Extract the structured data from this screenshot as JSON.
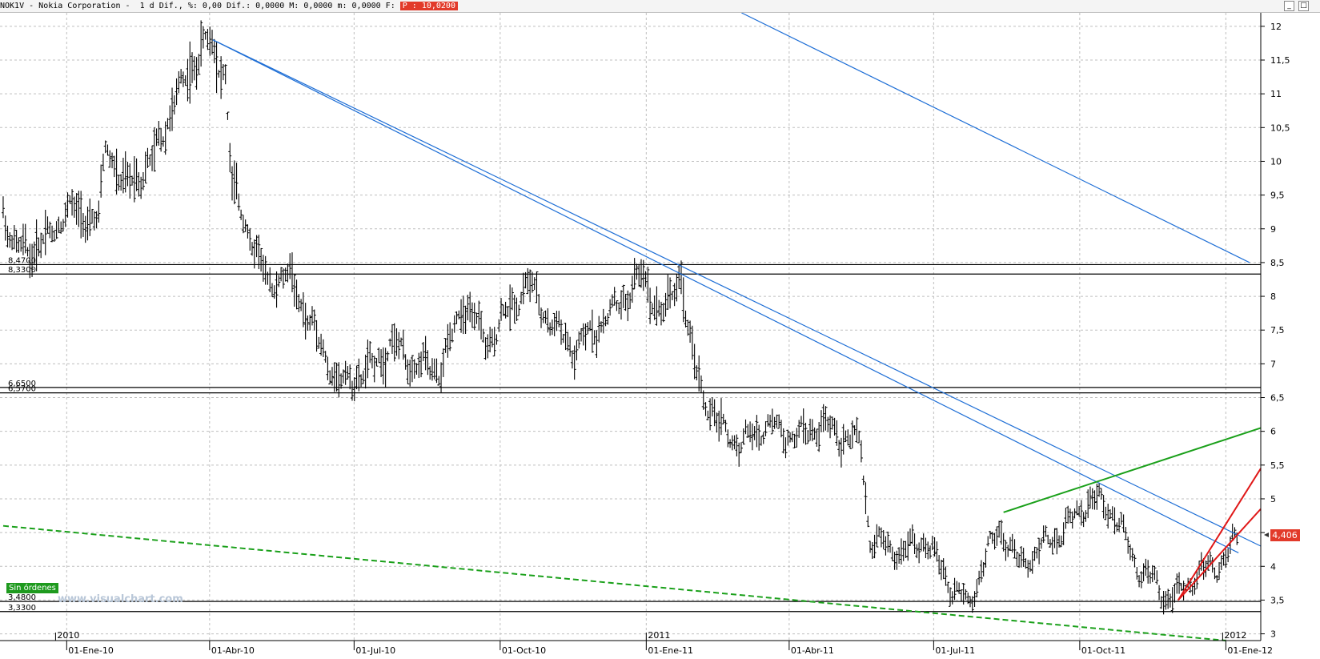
{
  "header": {
    "symbol": "NOK1V",
    "name": "Nokia Corporation",
    "info": "1 d Dif., %: 0,00 Dif.: 0,0000 M: 0,0000 m: 0,0000 F:",
    "price_tag": "P : 10,0200"
  },
  "window_buttons": [
    "_",
    "□"
  ],
  "badge": "Sin órdenes",
  "watermark": "www.visualchart.com",
  "last_price_label": "4,406",
  "colors": {
    "price": "#000000",
    "trend_blue": "#1f6fd6",
    "trend_green": "#1aa01a",
    "trend_red": "#e01818",
    "support_line": "#000000",
    "price_tag": "#e23a2a"
  },
  "chart_data": {
    "type": "ohlc-bar",
    "ylim": [
      2.9,
      12.2
    ],
    "y_ticks": [
      "3",
      "3,5",
      "4",
      "4,5",
      "5",
      "5,5",
      "6",
      "6,5",
      "7",
      "7,5",
      "8",
      "8,5",
      "9",
      "9,5",
      "10",
      "10,5",
      "11",
      "11,5",
      "12"
    ],
    "x_ticks": [
      {
        "label": "01-Ene-10",
        "day": 0
      },
      {
        "label": "01-Abr-10",
        "day": 90
      },
      {
        "label": "01-Jul-10",
        "day": 181
      },
      {
        "label": "01-Oct-10",
        "day": 273
      },
      {
        "label": "01-Ene-11",
        "day": 365
      },
      {
        "label": "01-Abr-11",
        "day": 455
      },
      {
        "label": "01-Jul-11",
        "day": 546
      },
      {
        "label": "01-Oct-11",
        "day": 638
      },
      {
        "label": "01-Ene-12",
        "day": 730
      }
    ],
    "year_labels": [
      {
        "label": "2010",
        "day": -7
      },
      {
        "label": "2011",
        "day": 365
      },
      {
        "label": "2012",
        "day": 728
      }
    ],
    "price_series_anchor_points": [
      {
        "day": -40,
        "close": 9.3
      },
      {
        "day": -33,
        "close": 8.7
      },
      {
        "day": -22,
        "close": 8.7
      },
      {
        "day": -10,
        "close": 8.9
      },
      {
        "day": 0,
        "close": 9.3
      },
      {
        "day": 20,
        "close": 9.1
      },
      {
        "day": 25,
        "close": 10.3
      },
      {
        "day": 36,
        "close": 9.6
      },
      {
        "day": 54,
        "close": 10.0
      },
      {
        "day": 68,
        "close": 10.9
      },
      {
        "day": 88,
        "close": 11.8
      },
      {
        "day": 100,
        "close": 11.3
      },
      {
        "day": 104,
        "close": 9.6
      },
      {
        "day": 116,
        "close": 8.9
      },
      {
        "day": 126,
        "close": 8.2
      },
      {
        "day": 140,
        "close": 8.3
      },
      {
        "day": 150,
        "close": 7.8
      },
      {
        "day": 163,
        "close": 7.1
      },
      {
        "day": 172,
        "close": 6.7
      },
      {
        "day": 190,
        "close": 6.9
      },
      {
        "day": 205,
        "close": 7.3
      },
      {
        "day": 218,
        "close": 7.0
      },
      {
        "day": 235,
        "close": 6.9
      },
      {
        "day": 250,
        "close": 7.9
      },
      {
        "day": 265,
        "close": 7.3
      },
      {
        "day": 290,
        "close": 8.2
      },
      {
        "day": 305,
        "close": 7.6
      },
      {
        "day": 320,
        "close": 7.2
      },
      {
        "day": 345,
        "close": 7.8
      },
      {
        "day": 362,
        "close": 8.3
      },
      {
        "day": 376,
        "close": 7.7
      },
      {
        "day": 387,
        "close": 8.4
      },
      {
        "day": 392,
        "close": 7.3
      },
      {
        "day": 400,
        "close": 6.6
      },
      {
        "day": 410,
        "close": 6.1
      },
      {
        "day": 425,
        "close": 5.8
      },
      {
        "day": 440,
        "close": 6.1
      },
      {
        "day": 460,
        "close": 5.9
      },
      {
        "day": 475,
        "close": 6.1
      },
      {
        "day": 500,
        "close": 5.8
      },
      {
        "day": 506,
        "close": 4.4
      },
      {
        "day": 525,
        "close": 4.2
      },
      {
        "day": 540,
        "close": 4.4
      },
      {
        "day": 555,
        "close": 3.8
      },
      {
        "day": 568,
        "close": 3.4
      },
      {
        "day": 580,
        "close": 4.2
      },
      {
        "day": 588,
        "close": 4.6
      },
      {
        "day": 600,
        "close": 4.0
      },
      {
        "day": 615,
        "close": 4.3
      },
      {
        "day": 630,
        "close": 4.6
      },
      {
        "day": 645,
        "close": 5.0
      },
      {
        "day": 660,
        "close": 4.8
      },
      {
        "day": 672,
        "close": 4.1
      },
      {
        "day": 690,
        "close": 3.6
      },
      {
        "day": 700,
        "close": 3.55
      },
      {
        "day": 712,
        "close": 3.9
      },
      {
        "day": 725,
        "close": 4.0
      },
      {
        "day": 738,
        "close": 4.406
      }
    ],
    "horizontal_levels": [
      {
        "value": 8.47,
        "label": "8,4700"
      },
      {
        "value": 8.33,
        "label": "8,3300"
      },
      {
        "value": 6.65,
        "label": "6,6500"
      },
      {
        "value": 6.57,
        "label": "6,5700"
      },
      {
        "value": 3.48,
        "label": "3,4800"
      },
      {
        "value": 3.33,
        "label": "3,3300"
      }
    ],
    "trendlines": [
      {
        "color": "blue",
        "style": "solid",
        "from": {
          "day": 92,
          "price": 11.8
        },
        "to": {
          "day": 752,
          "price": 4.3
        }
      },
      {
        "color": "blue",
        "style": "solid",
        "from": {
          "day": 92,
          "price": 11.8
        },
        "to": {
          "day": 738,
          "price": 4.2
        }
      },
      {
        "color": "blue",
        "style": "solid",
        "from": {
          "day": 425,
          "price": 12.2
        },
        "to": {
          "day": 745,
          "price": 8.5
        }
      },
      {
        "color": "green",
        "style": "solid",
        "from": {
          "day": 590,
          "price": 4.8
        },
        "to": {
          "day": 752,
          "price": 6.05
        }
      },
      {
        "color": "green",
        "style": "dashed",
        "from": {
          "day": -40,
          "price": 4.6
        },
        "to": {
          "day": 730,
          "price": 2.9
        }
      },
      {
        "color": "red",
        "style": "solid",
        "from": {
          "day": 700,
          "price": 3.5
        },
        "to": {
          "day": 752,
          "price": 5.45
        }
      },
      {
        "color": "red",
        "style": "solid",
        "from": {
          "day": 700,
          "price": 3.5
        },
        "to": {
          "day": 752,
          "price": 4.85
        }
      }
    ]
  }
}
